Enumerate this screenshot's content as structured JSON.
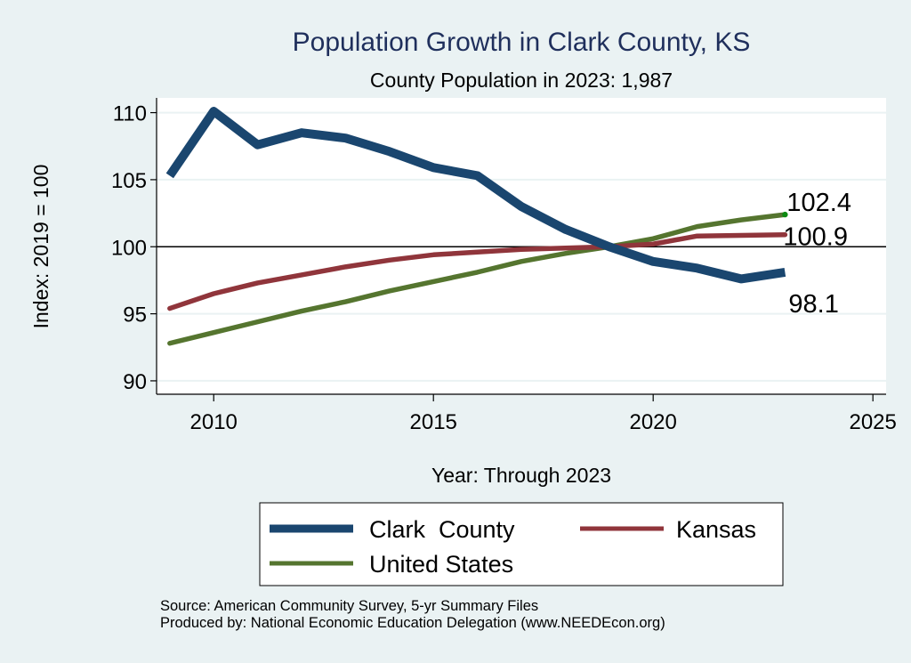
{
  "chart_data": {
    "type": "line",
    "title": "Population Growth in Clark County, KS",
    "subtitle": "County Population in 2023: 1,987",
    "xlabel": "Year: Through 2023",
    "ylabel": "Index: 2019 = 100",
    "x": [
      2009,
      2010,
      2011,
      2012,
      2013,
      2014,
      2015,
      2016,
      2017,
      2018,
      2019,
      2020,
      2021,
      2022,
      2023
    ],
    "xlim": [
      2008.7,
      2025.3
    ],
    "ylim": [
      89.0,
      111.1
    ],
    "xticks": [
      2010,
      2015,
      2020,
      2025
    ],
    "xtick_labels": [
      "2010",
      "2015",
      "2020",
      "2025"
    ],
    "yticks": [
      90,
      95,
      100,
      105,
      110
    ],
    "ytick_labels": [
      "90",
      "95",
      "100",
      "105",
      "110"
    ],
    "grid": true,
    "reference_line": 100,
    "series": [
      {
        "name": "Clark  County",
        "color": "#1a466f",
        "values": [
          105.3,
          110.1,
          107.6,
          108.5,
          108.1,
          107.1,
          105.9,
          105.3,
          103.0,
          101.3,
          100.0,
          98.9,
          98.4,
          97.6,
          98.1
        ],
        "end_label": "98.1"
      },
      {
        "name": "Kansas",
        "color": "#90353b",
        "values": [
          95.4,
          96.5,
          97.3,
          97.9,
          98.5,
          99.0,
          99.4,
          99.6,
          99.8,
          99.9,
          100.0,
          100.2,
          100.8,
          100.85,
          100.9
        ],
        "end_label": "100.9"
      },
      {
        "name": "United States",
        "color": "#55752f",
        "values": [
          92.8,
          93.6,
          94.4,
          95.2,
          95.9,
          96.7,
          97.4,
          98.1,
          98.9,
          99.5,
          100.0,
          100.6,
          101.5,
          102.0,
          102.4
        ],
        "end_label": "102.4"
      }
    ],
    "legend": {
      "position": "bottom",
      "entries": [
        "Clark  County",
        "Kansas",
        "United States"
      ]
    },
    "footer": [
      "Source: American Community Survey, 5-yr Summary Files",
      "Produced by: National Economic Education Delegation (www.NEEDEcon.org)"
    ]
  }
}
